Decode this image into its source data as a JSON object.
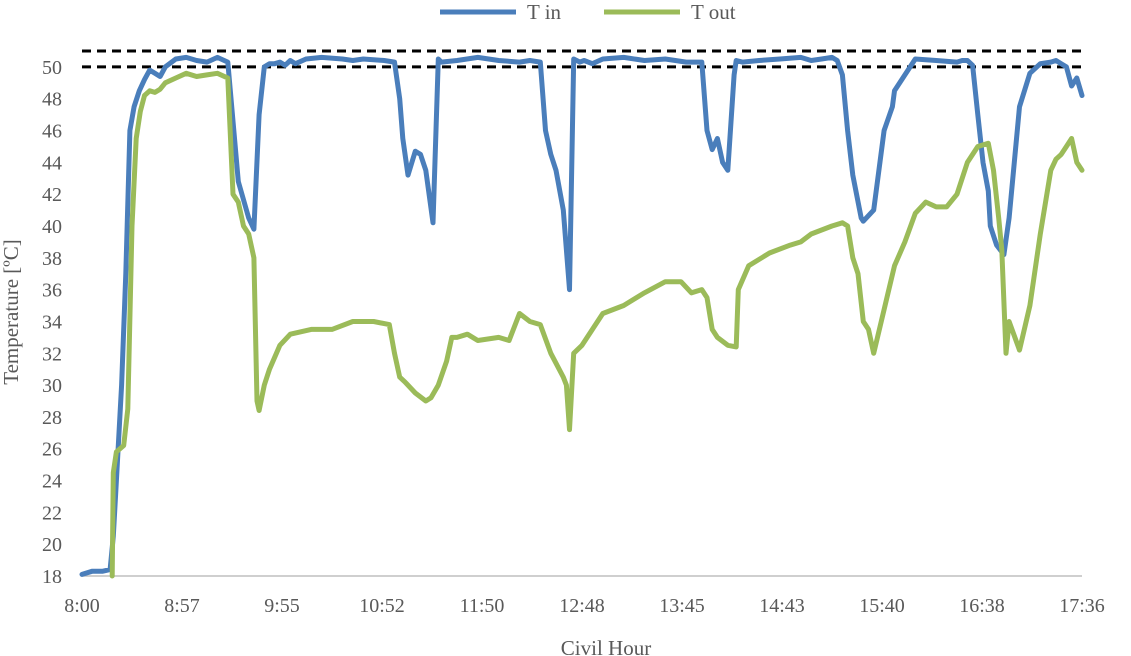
{
  "chart_data": {
    "type": "line",
    "title": "",
    "xlabel": "Civil Hour",
    "ylabel": "Temperature [ºC]",
    "xlim": [
      0,
      9.6
    ],
    "ylim": [
      18,
      51
    ],
    "x_tick_labels": [
      "8:00",
      "8:57",
      "9:55",
      "10:52",
      "11:50",
      "12:48",
      "13:45",
      "14:43",
      "15:40",
      "16:38",
      "17:36"
    ],
    "y_ticks": [
      18,
      20,
      22,
      24,
      26,
      28,
      30,
      32,
      34,
      36,
      38,
      40,
      42,
      44,
      46,
      48,
      50
    ],
    "grid": false,
    "legend_position": "top-center",
    "reference_lines": [
      {
        "y": 51,
        "style": "dashed",
        "color": "#000000"
      },
      {
        "y": 50,
        "style": "dashed",
        "color": "#000000"
      }
    ],
    "series": [
      {
        "name": "T in",
        "color": "#4a7ebb",
        "x": [
          0,
          0.1,
          0.2,
          0.27,
          0.3,
          0.33,
          0.38,
          0.42,
          0.46,
          0.5,
          0.55,
          0.6,
          0.65,
          0.7,
          0.75,
          0.8,
          0.9,
          1.0,
          1.1,
          1.2,
          1.3,
          1.4,
          1.5,
          1.6,
          1.65,
          1.7,
          1.75,
          1.8,
          1.85,
          1.9,
          1.95,
          2.0,
          2.05,
          2.15,
          2.3,
          2.5,
          2.6,
          2.7,
          2.9,
          3.0,
          3.05,
          3.08,
          3.13,
          3.2,
          3.25,
          3.3,
          3.37,
          3.42,
          3.45,
          3.6,
          3.8,
          4.0,
          4.2,
          4.3,
          4.4,
          4.45,
          4.5,
          4.55,
          4.62,
          4.68,
          4.72,
          4.78,
          4.82,
          4.9,
          5.0,
          5.2,
          5.4,
          5.6,
          5.8,
          5.95,
          6.0,
          6.05,
          6.1,
          6.15,
          6.2,
          6.26,
          6.28,
          6.34,
          6.5,
          6.7,
          6.9,
          7.0,
          7.1,
          7.2,
          7.25,
          7.3,
          7.35,
          7.4,
          7.48,
          7.5,
          7.6,
          7.7,
          7.78,
          7.8,
          8.0,
          8.2,
          8.4,
          8.45,
          8.5,
          8.55,
          8.6,
          8.65,
          8.7,
          8.72,
          8.78,
          8.85,
          8.9,
          8.95,
          9.0,
          9.1,
          9.2,
          9.3,
          9.35,
          9.4,
          9.45,
          9.5,
          9.55,
          9.6
        ],
        "values": [
          18.1,
          18.3,
          18.3,
          18.4,
          20.5,
          24,
          30,
          37,
          46,
          47.5,
          48.5,
          49.2,
          49.8,
          49.6,
          49.4,
          50,
          50.5,
          50.6,
          50.4,
          50.3,
          50.6,
          50.3,
          42.8,
          40.5,
          39.8,
          47,
          50,
          50.2,
          50.2,
          50.3,
          50.1,
          50.4,
          50.2,
          50.5,
          50.6,
          50.5,
          50.4,
          50.5,
          50.4,
          50.3,
          48,
          45.5,
          43.2,
          44.7,
          44.5,
          43.5,
          40.2,
          50.5,
          50.3,
          50.4,
          50.6,
          50.4,
          50.3,
          50.4,
          50.3,
          46,
          44.5,
          43.5,
          41,
          36,
          50.5,
          50.3,
          50.4,
          50.2,
          50.5,
          50.6,
          50.4,
          50.5,
          50.3,
          50.3,
          46,
          44.8,
          45.5,
          44,
          43.5,
          49.5,
          50.4,
          50.3,
          50.4,
          50.5,
          50.6,
          50.4,
          50.5,
          50.6,
          50.4,
          49.5,
          46,
          43.2,
          40.5,
          40.3,
          41,
          46,
          47.5,
          48.5,
          50.5,
          50.4,
          50.3,
          50.4,
          50.4,
          50.1,
          47,
          44,
          42.2,
          40,
          38.8,
          38.2,
          40.5,
          44,
          47.5,
          49.6,
          50.2,
          50.3,
          50.4,
          50.2,
          50,
          48.8,
          49.3,
          48.2
        ]
      },
      {
        "name": "T out",
        "color": "#9bbb59",
        "x": [
          0.29,
          0.3,
          0.33,
          0.4,
          0.44,
          0.48,
          0.52,
          0.56,
          0.6,
          0.65,
          0.7,
          0.75,
          0.8,
          0.9,
          1.0,
          1.1,
          1.2,
          1.3,
          1.4,
          1.45,
          1.5,
          1.55,
          1.6,
          1.65,
          1.68,
          1.7,
          1.75,
          1.8,
          1.9,
          2.0,
          2.2,
          2.4,
          2.6,
          2.8,
          2.95,
          3.0,
          3.05,
          3.1,
          3.2,
          3.3,
          3.35,
          3.42,
          3.5,
          3.55,
          3.6,
          3.7,
          3.8,
          4.0,
          4.1,
          4.2,
          4.3,
          4.4,
          4.5,
          4.62,
          4.65,
          4.68,
          4.72,
          4.8,
          4.9,
          5.0,
          5.2,
          5.4,
          5.6,
          5.75,
          5.85,
          5.95,
          6.0,
          6.05,
          6.1,
          6.2,
          6.28,
          6.3,
          6.4,
          6.6,
          6.8,
          6.9,
          7.0,
          7.2,
          7.3,
          7.35,
          7.4,
          7.45,
          7.5,
          7.55,
          7.6,
          7.8,
          7.9,
          8.0,
          8.1,
          8.2,
          8.3,
          8.4,
          8.5,
          8.6,
          8.7,
          8.75,
          8.8,
          8.83,
          8.87,
          8.9,
          9.0,
          9.1,
          9.2,
          9.3,
          9.35,
          9.4,
          9.45,
          9.5,
          9.55,
          9.6
        ],
        "values": [
          18,
          24.5,
          25.8,
          26.2,
          28.5,
          40,
          45.5,
          47.2,
          48.2,
          48.5,
          48.4,
          48.6,
          49,
          49.3,
          49.6,
          49.4,
          49.5,
          49.6,
          49.3,
          42,
          41.5,
          40,
          39.5,
          38,
          29,
          28.4,
          30,
          31,
          32.5,
          33.2,
          33.5,
          33.5,
          34,
          34,
          33.8,
          32,
          30.5,
          30.2,
          29.5,
          29,
          29.2,
          30,
          31.5,
          33,
          33,
          33.2,
          32.8,
          33,
          32.8,
          34.5,
          34,
          33.8,
          32,
          30.5,
          30,
          27.2,
          32,
          32.5,
          33.5,
          34.5,
          35,
          35.8,
          36.5,
          36.5,
          35.8,
          36,
          35.5,
          33.5,
          33,
          32.5,
          32.4,
          36,
          37.5,
          38.3,
          38.8,
          39,
          39.5,
          40,
          40.2,
          40,
          38,
          37,
          34,
          33.5,
          32,
          37.5,
          39,
          40.8,
          41.5,
          41.2,
          41.2,
          42,
          44,
          45,
          45.2,
          43.5,
          40.5,
          38.5,
          32,
          34,
          32.2,
          35,
          39.5,
          43.5,
          44.2,
          44.5,
          45,
          45.5,
          44,
          43.5
        ]
      }
    ]
  }
}
